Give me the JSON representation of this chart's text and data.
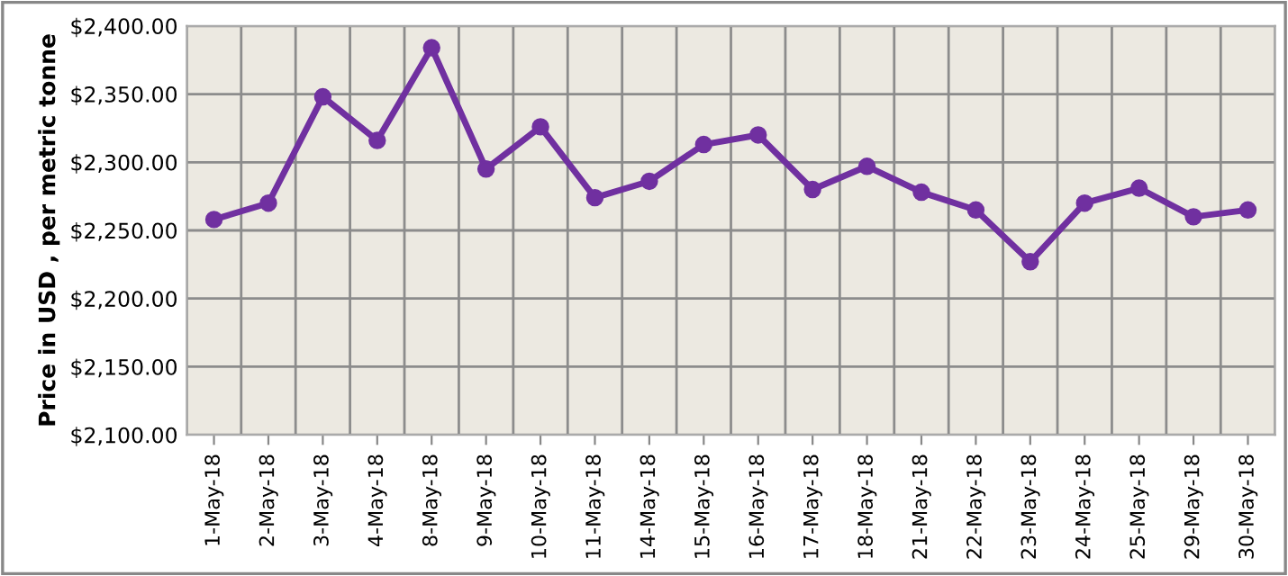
{
  "chart_data": {
    "type": "line",
    "ylabel": "Price in USD , per metric tonne",
    "categories": [
      "1-May-18",
      "2-May-18",
      "3-May-18",
      "4-May-18",
      "8-May-18",
      "9-May-18",
      "10-May-18",
      "11-May-18",
      "14-May-18",
      "15-May-18",
      "16-May-18",
      "17-May-18",
      "18-May-18",
      "21-May-18",
      "22-May-18",
      "23-May-18",
      "24-May-18",
      "25-May-18",
      "29-May-18",
      "30-May-18"
    ],
    "series": [
      {
        "color": "#7030a0",
        "values": [
          2258,
          2270,
          2348,
          2316,
          2384,
          2295,
          2326,
          2274,
          2286,
          2313,
          2320,
          2280,
          2297,
          2278,
          2265,
          2227,
          2270,
          2281,
          2260,
          2265
        ]
      }
    ],
    "ylim": [
      2100,
      2400
    ],
    "yticks": [
      {
        "value": 2100,
        "label": "$2,100.00"
      },
      {
        "value": 2150,
        "label": "$2,150.00"
      },
      {
        "value": 2200,
        "label": "$2,200.00"
      },
      {
        "value": 2250,
        "label": "$2,250.00"
      },
      {
        "value": 2300,
        "label": "$2,300.00"
      },
      {
        "value": 2350,
        "label": "$2,350.00"
      },
      {
        "value": 2400,
        "label": "$2,400.00"
      }
    ],
    "grid": true,
    "marker": "circle",
    "line_style": "solid",
    "legend": false
  }
}
